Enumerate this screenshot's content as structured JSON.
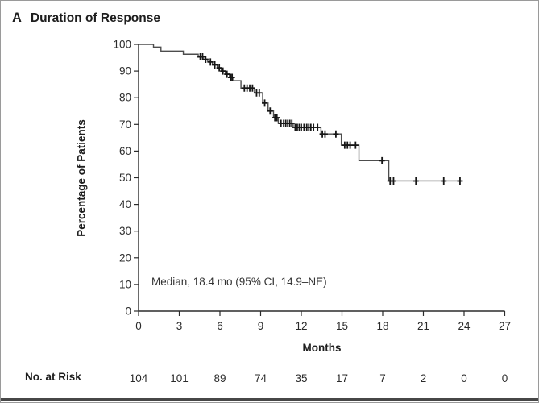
{
  "panel": {
    "label": "A",
    "title": "Duration of Response"
  },
  "colors": {
    "curve": "#4d4d4d",
    "censor": "#161616",
    "axis": "#2b2b2b",
    "text": "#1e1e1e",
    "frame_border": "#9a9a9a",
    "bottom_rule": "#474747",
    "background": "#ffffff"
  },
  "chart_data": {
    "type": "line",
    "subtype": "kaplan-meier-step",
    "title": "Duration of Response",
    "xlabel": "Months",
    "ylabel": "Percentage of Patients",
    "xlim": [
      0,
      27
    ],
    "ylim": [
      0,
      100
    ],
    "grid": false,
    "x_ticks": [
      0,
      3,
      6,
      9,
      12,
      15,
      18,
      21,
      24,
      27
    ],
    "y_ticks": [
      0,
      10,
      20,
      30,
      40,
      50,
      60,
      70,
      80,
      90,
      100
    ],
    "annotation": "Median, 18.4 mo (95% CI, 14.9–NE)",
    "series": [
      {
        "name": "Duration of response",
        "steps": [
          [
            0,
            100
          ],
          [
            1.1,
            99
          ],
          [
            1.65,
            97.5
          ],
          [
            3.3,
            96.3
          ],
          [
            4.4,
            95.3
          ],
          [
            4.75,
            94.4
          ],
          [
            5.1,
            93.4
          ],
          [
            5.45,
            92.3
          ],
          [
            5.8,
            91.2
          ],
          [
            6.1,
            90
          ],
          [
            6.4,
            88.8
          ],
          [
            6.7,
            87.6
          ],
          [
            6.95,
            86.4
          ],
          [
            7.55,
            83.6
          ],
          [
            8.55,
            81.8
          ],
          [
            9.15,
            78
          ],
          [
            9.55,
            75
          ],
          [
            9.95,
            72.5
          ],
          [
            10.3,
            70.4
          ],
          [
            11.4,
            68.9
          ],
          [
            13.45,
            66.4
          ],
          [
            14.95,
            62.2
          ],
          [
            16.25,
            56.4
          ],
          [
            18.45,
            48.8
          ]
        ],
        "end_x": 23.9,
        "censor_x": [
          4.55,
          4.72,
          4.95,
          5.3,
          5.62,
          5.95,
          6.22,
          6.52,
          6.8,
          6.9,
          7.8,
          8.0,
          8.2,
          8.4,
          8.7,
          8.9,
          9.3,
          9.7,
          10.05,
          10.2,
          10.5,
          10.7,
          10.85,
          11.0,
          11.15,
          11.3,
          11.55,
          11.7,
          11.85,
          12.0,
          12.2,
          12.4,
          12.55,
          12.7,
          12.9,
          13.2,
          13.55,
          13.75,
          14.55,
          15.2,
          15.4,
          15.6,
          16.0,
          17.95,
          18.55,
          18.8,
          20.45,
          22.5,
          23.7
        ]
      }
    ],
    "no_at_risk": {
      "label": "No. at Risk",
      "x": [
        0,
        3,
        6,
        9,
        12,
        15,
        18,
        21,
        24,
        27
      ],
      "values": [
        104,
        101,
        89,
        74,
        35,
        17,
        7,
        2,
        0,
        0
      ]
    }
  }
}
